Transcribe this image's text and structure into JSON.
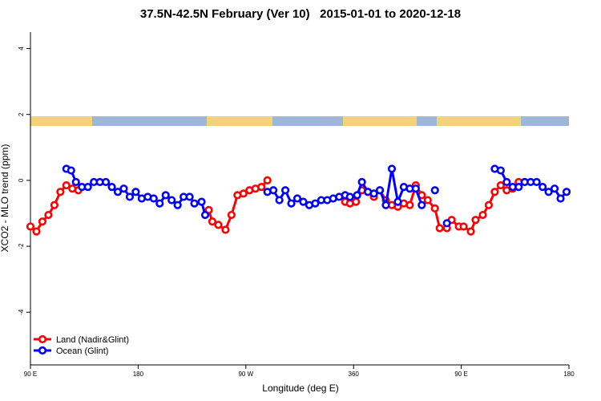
{
  "chart_data": {
    "type": "line",
    "title": "37.5N-42.5N February (Ver 10)   2015-01-01 to 2020-12-18",
    "x_label": "Longitude (deg E)",
    "y_label": "XCO2 - MLO trend (ppm)",
    "xlim": [
      90,
      540
    ],
    "ylim": [
      -5.6,
      4.5
    ],
    "xticks": [
      {
        "value": 90,
        "label": "90 E"
      },
      180,
      {
        "value": 270,
        "label": "90 W"
      },
      360,
      {
        "value": 450,
        "label": "90 E"
      },
      {
        "value": 540,
        "label": "180"
      }
    ],
    "yticks": [
      4,
      2,
      0,
      -2,
      -4
    ],
    "legend": "bottom-left",
    "series": [
      {
        "name": "Land (Nadir&Glint)",
        "color": "#ff0000",
        "x": [
          90,
          95,
          100,
          105,
          110,
          115,
          120,
          125,
          130,
          null,
          239,
          242,
          247,
          253,
          258,
          263,
          268,
          273,
          278,
          283,
          288,
          null,
          353,
          357,
          362,
          367,
          372,
          377,
          382,
          387,
          392,
          397,
          402,
          407,
          412,
          417,
          422,
          428,
          432,
          438,
          442,
          448,
          452,
          458,
          462,
          468,
          473,
          478,
          483,
          488,
          493,
          498,
          503
        ],
        "values": [
          -1.4,
          -1.55,
          -1.25,
          -1.05,
          -0.75,
          -0.35,
          -0.15,
          -0.25,
          -0.3,
          null,
          -0.9,
          -1.25,
          -1.35,
          -1.5,
          -1.05,
          -0.45,
          -0.4,
          -0.3,
          -0.25,
          -0.2,
          0.0,
          null,
          -0.65,
          -0.7,
          -0.65,
          -0.3,
          -0.35,
          -0.5,
          -0.3,
          -0.6,
          -0.75,
          -0.8,
          -0.7,
          -0.75,
          -0.15,
          -0.45,
          -0.6,
          -0.85,
          -1.45,
          -1.45,
          -1.2,
          -1.4,
          -1.4,
          -1.55,
          -1.2,
          -1.05,
          -0.75,
          -0.35,
          -0.15,
          -0.3,
          -0.25,
          -0.05,
          -0.05
        ]
      },
      {
        "name": "Ocean (Glint)",
        "color": "#0000ff",
        "x": [
          120,
          124,
          128,
          133,
          138,
          143,
          148,
          153,
          158,
          163,
          168,
          173,
          178,
          183,
          188,
          193,
          198,
          203,
          208,
          213,
          218,
          223,
          227,
          233,
          236,
          null,
          288,
          293,
          298,
          303,
          308,
          313,
          318,
          323,
          328,
          333,
          338,
          343,
          348,
          353,
          357,
          363,
          367,
          372,
          377,
          382,
          387,
          392,
          397,
          402,
          407,
          412,
          417,
          null,
          428,
          null,
          438,
          null,
          478,
          483,
          488,
          493,
          498,
          503,
          508,
          513,
          518,
          523,
          528,
          533,
          538
        ],
        "values": [
          0.35,
          0.3,
          -0.05,
          -0.2,
          -0.2,
          -0.05,
          -0.05,
          -0.05,
          -0.2,
          -0.35,
          -0.25,
          -0.5,
          -0.35,
          -0.55,
          -0.5,
          -0.55,
          -0.7,
          -0.45,
          -0.6,
          -0.75,
          -0.5,
          -0.5,
          -0.7,
          -0.65,
          -1.05,
          null,
          -0.35,
          -0.3,
          -0.6,
          -0.3,
          -0.7,
          -0.55,
          -0.65,
          -0.75,
          -0.7,
          -0.6,
          -0.6,
          -0.55,
          -0.5,
          -0.45,
          -0.5,
          -0.45,
          -0.05,
          -0.35,
          -0.4,
          -0.3,
          -0.75,
          0.35,
          -0.65,
          -0.2,
          -0.25,
          -0.25,
          -0.75,
          null,
          -0.3,
          null,
          -1.3,
          null,
          0.35,
          0.3,
          -0.05,
          -0.2,
          -0.2,
          -0.05,
          -0.05,
          -0.05,
          -0.2,
          -0.35,
          -0.25,
          -0.55,
          -0.35
        ]
      }
    ]
  }
}
